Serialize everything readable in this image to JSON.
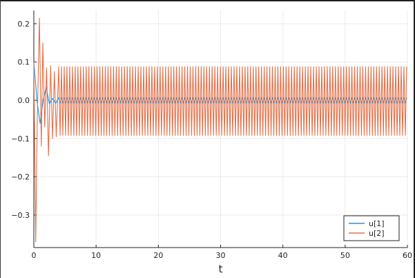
{
  "chart_data": {
    "type": "line",
    "title": "",
    "xlabel": "t",
    "ylabel": "",
    "xlim": [
      0,
      60
    ],
    "ylim": [
      -0.385,
      0.235
    ],
    "x_ticks": [
      0,
      10,
      20,
      30,
      40,
      50,
      60
    ],
    "x_tick_labels": [
      "0",
      "10",
      "20",
      "30",
      "40",
      "50",
      "60"
    ],
    "y_ticks": [
      0.2,
      0.1,
      0.0,
      -0.1,
      -0.2,
      -0.3
    ],
    "y_tick_labels": [
      "0.2",
      "0.1",
      "0.0",
      "−0.1",
      "−0.2",
      "−0.3"
    ],
    "grid": true,
    "legend_position": "bottom-right",
    "series": [
      {
        "name": "u[1]",
        "color": "#009AFA",
        "x": [
          0,
          0.5,
          1.0,
          1.5,
          2.0,
          2.5,
          3.0,
          3.5,
          4.0,
          5.0,
          6.0,
          60
        ],
        "values": [
          0.1,
          0.0,
          -0.06,
          0.0,
          0.035,
          -0.01,
          0.005,
          -0.008,
          0.012,
          0.008,
          0.006,
          0.006
        ],
        "steady_oscillation": {
          "start": 4.0,
          "center": 0.0,
          "amplitude": 0.007,
          "period": 0.44
        }
      },
      {
        "name": "u[2]",
        "color": "#E36F47",
        "x": [
          0,
          0.3,
          0.55,
          0.9,
          1.2,
          1.45,
          1.75,
          2.05,
          2.35,
          2.7,
          3.0,
          3.3,
          3.6,
          4.0,
          4.4,
          4.8,
          5.2,
          6.0,
          60
        ],
        "values": [
          0.1,
          -0.37,
          -0.05,
          0.215,
          -0.12,
          0.15,
          -0.07,
          0.085,
          -0.145,
          0.09,
          -0.1,
          0.075,
          -0.095,
          0.095,
          -0.085,
          0.1,
          -0.09,
          0.09,
          -0.09
        ],
        "steady_oscillation": {
          "start": 4.0,
          "center": -0.002,
          "amplitude": 0.09,
          "period": 0.44
        }
      }
    ]
  }
}
